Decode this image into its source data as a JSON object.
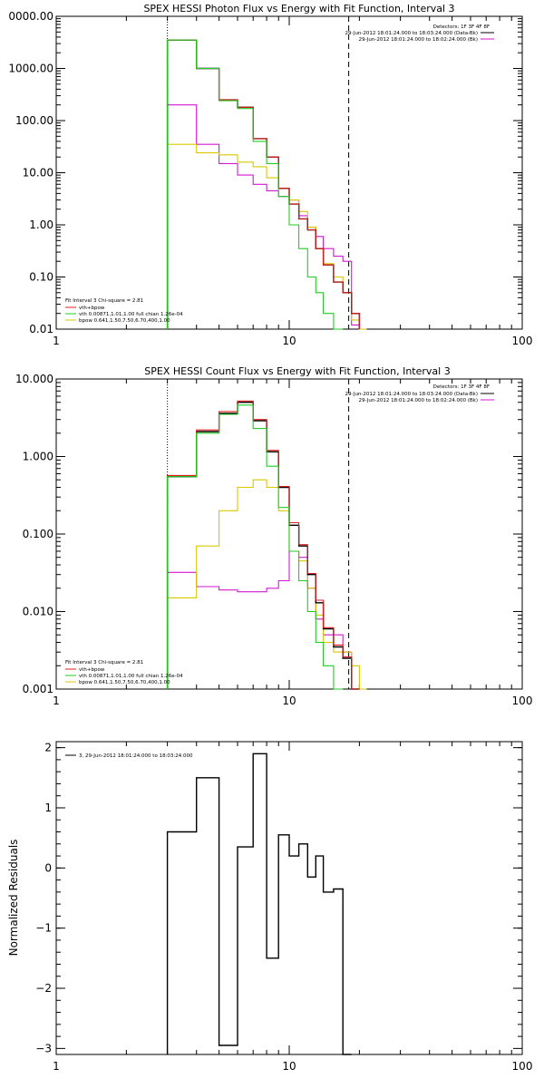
{
  "colors": {
    "total": "#000000",
    "model": "#e0201e",
    "vth": "#22cc22",
    "bpow": "#d9c800",
    "bk": "#d318d3"
  },
  "chart_data": [
    {
      "type": "line",
      "title": "SPEX HESSI Photon Flux vs Energy with Fit Function, Interval 3",
      "xscale": "log",
      "yscale": "log",
      "xlim": [
        1,
        100
      ],
      "ylim": [
        0.01,
        10000
      ],
      "xticks": [
        "1",
        "10",
        "100"
      ],
      "yticks": [
        "0000.00",
        "1000.00",
        "100.00",
        "10.00",
        "1.00",
        "0.10",
        "0.01"
      ],
      "detectors": "Detectors: 1F 3F 4F 8F",
      "legend_top": [
        {
          "text": "29-Jun-2012 18:01:24.000 to 18:03:24.000 (Data-Bk)",
          "color": "#000000"
        },
        {
          "text": "29-Jun-2012 18:01:24.000 to 18:02:24.000 (Bk)",
          "color": "#d318d3"
        }
      ],
      "legend_bottom": [
        {
          "text": "Fit Interval 3   Chi-square = 2.81",
          "color": "#000000"
        },
        {
          "text": "vth+bpow",
          "color": "#e0201e"
        },
        {
          "text": "vth 0.00871,1.01,1.00  full chian 1.26e-04",
          "color": "#22cc22"
        },
        {
          "text": "bpow 0.641,1.50,7.50,6.70,400,1.00",
          "color": "#d9c800"
        }
      ],
      "vlines": [
        {
          "x": 3.0,
          "style": "dotted"
        },
        {
          "x": 18.0,
          "style": "dashed"
        }
      ],
      "edges": [
        3.0,
        4.0,
        5.0,
        6.0,
        7.0,
        8.0,
        9.0,
        10.0,
        11.0,
        12.0,
        13.0,
        14.0,
        15.5,
        17.0,
        18.5,
        20.0,
        21.5
      ],
      "series": [
        {
          "key": "bk",
          "values": [
            200,
            35,
            15,
            9,
            6,
            4.5,
            3.5,
            3,
            1.5,
            0.9,
            0.6,
            0.35,
            0.25,
            0.2,
            0.012,
            null
          ]
        },
        {
          "key": "bpow",
          "values": [
            35,
            24,
            22,
            16,
            13,
            8,
            5,
            3,
            1.8,
            0.9,
            0.35,
            0.18,
            0.1,
            0.05,
            0.015,
            0.01
          ]
        },
        {
          "key": "total",
          "values": [
            3500,
            1000,
            250,
            180,
            45,
            20,
            5,
            2.5,
            1.3,
            0.8,
            0.35,
            0.17,
            0.08,
            0.05,
            0.02,
            null
          ]
        },
        {
          "key": "model",
          "values": [
            3500,
            1000,
            250,
            180,
            45,
            20,
            5,
            2.5,
            1.3,
            0.8,
            0.35,
            0.17,
            0.08,
            0.05,
            0.02,
            null
          ]
        },
        {
          "key": "vth",
          "values": [
            3500,
            1000,
            240,
            170,
            40,
            15,
            3.5,
            1,
            0.35,
            0.1,
            0.05,
            0.02,
            0.01,
            null,
            null,
            null
          ]
        }
      ]
    },
    {
      "type": "line",
      "title": "SPEX HESSI Count Flux vs Energy with Fit Function, Interval 3",
      "xscale": "log",
      "yscale": "log",
      "xlim": [
        1,
        100
      ],
      "ylim": [
        0.001,
        10
      ],
      "xticks": [
        "1",
        "10",
        "100"
      ],
      "yticks": [
        "10.000",
        "1.000",
        "0.100",
        "0.010",
        "0.001"
      ],
      "detectors": "Detectors: 1F 3F 4F 8F",
      "legend_top": [
        {
          "text": "29-Jun-2012 18:01:24.000 to 18:03:24.000 (Data-Bk)",
          "color": "#000000"
        },
        {
          "text": "29-Jun-2012 18:01:24.000 to 18:02:24.000 (Bk)",
          "color": "#d318d3"
        }
      ],
      "legend_bottom": [
        {
          "text": "Fit Interval 3   Chi-square = 2.81",
          "color": "#000000"
        },
        {
          "text": "vth+bpow",
          "color": "#e0201e"
        },
        {
          "text": "vth 0.00871,1.01,1.00  full chian 1.26e-04",
          "color": "#22cc22"
        },
        {
          "text": "bpow 0.641,1.50,7.50,6.70,400,1.00",
          "color": "#d9c800"
        }
      ],
      "vlines": [
        {
          "x": 3.0,
          "style": "dotted"
        },
        {
          "x": 18.0,
          "style": "dashed"
        }
      ],
      "edges": [
        3.0,
        4.0,
        5.0,
        6.0,
        7.0,
        8.0,
        9.0,
        10.0,
        11.0,
        12.0,
        13.0,
        14.0,
        15.5,
        17.0,
        18.5,
        20.0,
        21.5
      ],
      "series": [
        {
          "key": "bk",
          "values": [
            0.032,
            0.021,
            0.019,
            0.018,
            0.018,
            0.02,
            0.025,
            0.06,
            0.05,
            0.02,
            0.008,
            0.005,
            0.005,
            0.003,
            0.001,
            null
          ]
        },
        {
          "key": "bpow",
          "values": [
            0.015,
            0.07,
            0.2,
            0.4,
            0.5,
            0.4,
            0.2,
            0.06,
            0.045,
            0.02,
            0.009,
            0.004,
            0.003,
            0.003,
            0.002,
            0.001
          ]
        },
        {
          "key": "total",
          "values": [
            0.55,
            2.1,
            3.6,
            5.0,
            2.9,
            1.15,
            0.4,
            0.13,
            0.07,
            0.03,
            0.013,
            0.006,
            0.0035,
            0.0025,
            0.001,
            null
          ]
        },
        {
          "key": "model",
          "values": [
            0.57,
            2.2,
            3.8,
            5.2,
            3.0,
            1.2,
            0.41,
            0.14,
            0.073,
            0.031,
            0.014,
            0.0062,
            0.0037,
            0.0026,
            0.001,
            null
          ]
        },
        {
          "key": "vth",
          "values": [
            0.55,
            2.0,
            3.5,
            4.6,
            2.3,
            0.75,
            0.22,
            0.06,
            0.025,
            0.01,
            0.004,
            0.002,
            0.001,
            null,
            null,
            null
          ]
        }
      ]
    },
    {
      "type": "line",
      "title": "",
      "xscale": "log",
      "yscale": "linear",
      "xlim": [
        1,
        100
      ],
      "ylim": [
        -3.1,
        2.1
      ],
      "xticks": [
        "1",
        "10",
        "100"
      ],
      "yticks": [
        "2",
        "1",
        "0",
        "−1",
        "−2",
        "−3"
      ],
      "ylabel": "Normalized Residuals",
      "legend_top_left": "3, 29-Jun-2012 18:01:24.000 to 18:03:24.000",
      "edges": [
        3.0,
        4.0,
        5.0,
        6.0,
        7.0,
        8.0,
        9.0,
        10.0,
        11.0,
        12.0,
        13.0,
        14.0,
        15.5,
        17.0,
        18.5
      ],
      "series": [
        {
          "key": "total",
          "values": [
            0.6,
            1.5,
            -2.95,
            0.35,
            1.9,
            -1.5,
            0.55,
            0.2,
            0.4,
            -0.15,
            0.2,
            -0.4,
            -0.35,
            -3.1
          ]
        }
      ]
    }
  ]
}
